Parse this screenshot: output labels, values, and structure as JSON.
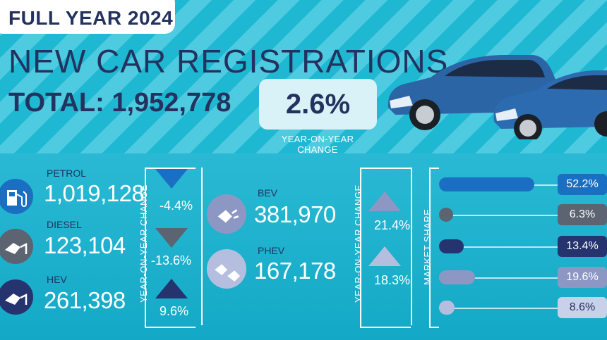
{
  "header": {
    "badge": "FULL YEAR 2024",
    "title": "NEW CAR REGISTRATIONS",
    "total": "TOTAL: 1,952,778",
    "yoy_value": "2.6%",
    "yoy_label": "YEAR-ON-YEAR CHANGE"
  },
  "fuels": [
    {
      "label": "PETROL",
      "value": "1,019,128",
      "change": "-4.4%",
      "direction": "down",
      "color": "#1a6fc3"
    },
    {
      "label": "DIESEL",
      "value": "123,104",
      "change": "-13.6%",
      "direction": "down",
      "color": "#5b6470"
    },
    {
      "label": "HEV",
      "value": "261,398",
      "change": "9.6%",
      "direction": "up",
      "color": "#25336e"
    }
  ],
  "electric": [
    {
      "label": "BEV",
      "value": "381,970",
      "change": "21.4%",
      "direction": "up",
      "color": "#8d97c4"
    },
    {
      "label": "PHEV",
      "value": "167,178",
      "change": "18.3%",
      "direction": "up",
      "color": "#b6bedf"
    }
  ],
  "yoy_axis_label": "YEAR-ON-YEAR CHANGE",
  "market_share": {
    "label": "MARKET SHARE",
    "items": [
      {
        "value": 52.2,
        "text": "52.2%",
        "color": "#1a6fc3",
        "badge_bg": "#1a6fc3",
        "badge_fg": "#ffffff"
      },
      {
        "value": 6.3,
        "text": "6.3%",
        "color": "#5b6470",
        "badge_bg": "#5b6470",
        "badge_fg": "#ffffff"
      },
      {
        "value": 13.4,
        "text": "13.4%",
        "color": "#25336e",
        "badge_bg": "#25336e",
        "badge_fg": "#ffffff"
      },
      {
        "value": 19.6,
        "text": "19.6%",
        "color": "#8d97c4",
        "badge_bg": "#8d97c4",
        "badge_fg": "#ffffff"
      },
      {
        "value": 8.6,
        "text": "8.6%",
        "color": "#b6bedf",
        "badge_bg": "#c9d0ea",
        "badge_fg": "#23325e"
      }
    ]
  }
}
